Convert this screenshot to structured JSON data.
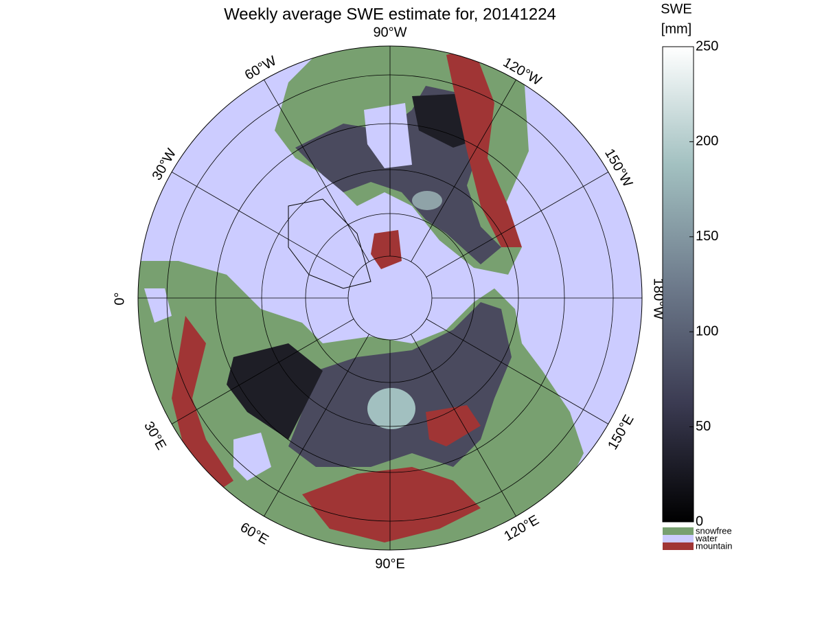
{
  "title": "Weekly average SWE estimate for, 20141224",
  "meridian_labels": [
    "90°W",
    "120°W",
    "150°W",
    "180°W",
    "150°E",
    "120°E",
    "90°E",
    "60°E",
    "30°E",
    "0°",
    "30°W",
    "60°W"
  ],
  "colorbar": {
    "title": [
      "SWE",
      "[mm]"
    ],
    "ylim": [
      0,
      250
    ],
    "yticks": [
      0,
      50,
      100,
      150,
      200,
      250
    ],
    "colors": [
      "#000000",
      "#3b3b52",
      "#6e7b8c",
      "#a2c0c0",
      "#ffffff"
    ]
  },
  "legend": [
    {
      "name": "snowfree",
      "color": "#78a070"
    },
    {
      "name": "water",
      "color": "#ccccff"
    },
    {
      "name": "mountain",
      "color": "#a03535"
    }
  ]
}
